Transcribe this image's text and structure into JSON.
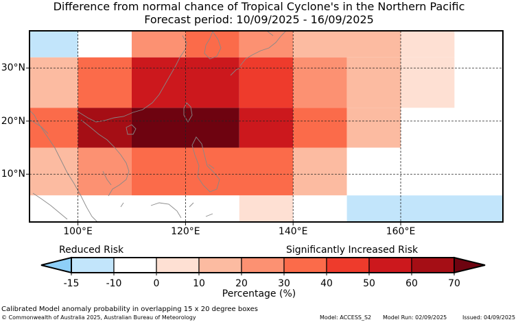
{
  "title": "Difference from normal chance of Tropical Cyclone's in the Northern Pacific",
  "subtitle": "Forecast period: 10/09/2025 - 16/09/2025",
  "map": {
    "lon_range": [
      91,
      179
    ],
    "lat_range": [
      1,
      37
    ],
    "lat_ticks": [
      {
        "value": 30,
        "label": "30°N"
      },
      {
        "value": 20,
        "label": "20°N"
      },
      {
        "value": 10,
        "label": "10°N"
      }
    ],
    "lon_ticks": [
      {
        "value": 100,
        "label": "100°E"
      },
      {
        "value": 120,
        "label": "120°E"
      },
      {
        "value": 140,
        "label": "140°E"
      },
      {
        "value": 160,
        "label": "160°E"
      }
    ],
    "grid": true,
    "coastline_color": "#888888"
  },
  "chart_data": {
    "type": "heatmap",
    "units": "Percentage (%)",
    "cells": [
      {
        "lon": [
          91,
          100
        ],
        "lat": [
          32,
          37
        ],
        "value": -12.5
      },
      {
        "lon": [
          100,
          110
        ],
        "lat": [
          32,
          37
        ],
        "value": -5
      },
      {
        "lon": [
          110,
          120
        ],
        "lat": [
          32,
          37
        ],
        "value": 25
      },
      {
        "lon": [
          120,
          130
        ],
        "lat": [
          32,
          37
        ],
        "value": 35
      },
      {
        "lon": [
          130,
          140
        ],
        "lat": [
          32,
          37
        ],
        "value": 25
      },
      {
        "lon": [
          140,
          160
        ],
        "lat": [
          32,
          37
        ],
        "value": 15
      },
      {
        "lon": [
          160,
          170
        ],
        "lat": [
          32,
          37
        ],
        "value": 5
      },
      {
        "lon": [
          170,
          179
        ],
        "lat": [
          32,
          37
        ],
        "value": -5
      },
      {
        "lon": [
          91,
          100
        ],
        "lat": [
          22.5,
          32
        ],
        "value": 15
      },
      {
        "lon": [
          100,
          110
        ],
        "lat": [
          22.5,
          32
        ],
        "value": 35
      },
      {
        "lon": [
          110,
          130
        ],
        "lat": [
          22.5,
          32
        ],
        "value": 55
      },
      {
        "lon": [
          130,
          140
        ],
        "lat": [
          22.5,
          32
        ],
        "value": 45
      },
      {
        "lon": [
          140,
          150
        ],
        "lat": [
          22.5,
          32
        ],
        "value": 25
      },
      {
        "lon": [
          150,
          160
        ],
        "lat": [
          22.5,
          32
        ],
        "value": 15
      },
      {
        "lon": [
          160,
          170
        ],
        "lat": [
          22.5,
          32
        ],
        "value": 5
      },
      {
        "lon": [
          170,
          179
        ],
        "lat": [
          22.5,
          32
        ],
        "value": -5
      },
      {
        "lon": [
          91,
          100
        ],
        "lat": [
          15,
          22.5
        ],
        "value": 35
      },
      {
        "lon": [
          100,
          110
        ],
        "lat": [
          15,
          22.5
        ],
        "value": 65
      },
      {
        "lon": [
          110,
          130
        ],
        "lat": [
          15,
          22.5
        ],
        "value": 75
      },
      {
        "lon": [
          130,
          140
        ],
        "lat": [
          15,
          22.5
        ],
        "value": 55
      },
      {
        "lon": [
          140,
          150
        ],
        "lat": [
          15,
          22.5
        ],
        "value": 35
      },
      {
        "lon": [
          150,
          160
        ],
        "lat": [
          15,
          22.5
        ],
        "value": 15
      },
      {
        "lon": [
          160,
          179
        ],
        "lat": [
          15,
          22.5
        ],
        "value": -5
      },
      {
        "lon": [
          91,
          100
        ],
        "lat": [
          6,
          15
        ],
        "value": 15
      },
      {
        "lon": [
          100,
          110
        ],
        "lat": [
          6,
          15
        ],
        "value": 25
      },
      {
        "lon": [
          110,
          140
        ],
        "lat": [
          6,
          15
        ],
        "value": 35
      },
      {
        "lon": [
          140,
          150
        ],
        "lat": [
          6,
          15
        ],
        "value": 15
      },
      {
        "lon": [
          150,
          160
        ],
        "lat": [
          6,
          15
        ],
        "value": -5
      },
      {
        "lon": [
          160,
          179
        ],
        "lat": [
          6,
          15
        ],
        "value": -7.5
      },
      {
        "lon": [
          91,
          100
        ],
        "lat": [
          1,
          6
        ],
        "value": -7.5
      },
      {
        "lon": [
          100,
          130
        ],
        "lat": [
          1,
          6
        ],
        "value": -5
      },
      {
        "lon": [
          130,
          140
        ],
        "lat": [
          1,
          6
        ],
        "value": 5
      },
      {
        "lon": [
          140,
          150
        ],
        "lat": [
          1,
          6
        ],
        "value": -5
      },
      {
        "lon": [
          150,
          179
        ],
        "lat": [
          1,
          6
        ],
        "value": -12.5
      }
    ]
  },
  "colorbar": {
    "label_low": "Reduced Risk",
    "label_high": "Significantly Increased Risk",
    "ticks": [
      "-15",
      "-10",
      "0",
      "10",
      "20",
      "30",
      "40",
      "50",
      "60",
      "70"
    ],
    "tick_values": [
      -15,
      -10,
      0,
      10,
      20,
      30,
      40,
      50,
      60,
      70
    ],
    "xlabel": "Percentage (%)",
    "under_color": "#8ecff8",
    "over_color": "#6e0310",
    "bins": [
      {
        "from": -15,
        "to": -10,
        "color": "#c2e5fb"
      },
      {
        "from": -10,
        "to": 0,
        "color": "#ffffff"
      },
      {
        "from": 0,
        "to": 10,
        "color": "#fee0d3"
      },
      {
        "from": 10,
        "to": 20,
        "color": "#fcbba1"
      },
      {
        "from": 20,
        "to": 30,
        "color": "#fc9172"
      },
      {
        "from": 30,
        "to": 40,
        "color": "#fb6b4a"
      },
      {
        "from": 40,
        "to": 50,
        "color": "#ee3b2c"
      },
      {
        "from": 50,
        "to": 60,
        "color": "#cc181d"
      },
      {
        "from": 60,
        "to": 70,
        "color": "#a50e15"
      }
    ]
  },
  "footer": {
    "description": "Calibrated Model anomaly probability in overlapping 15 x 20 degree boxes",
    "copyright": "© Commonwealth of Australia 2025, Australian Bureau of Meteorology",
    "model": "Model: ACCESS_S2",
    "model_run": "Model Run: 02/09/2025",
    "issued": "Issued: 04/09/2025"
  }
}
